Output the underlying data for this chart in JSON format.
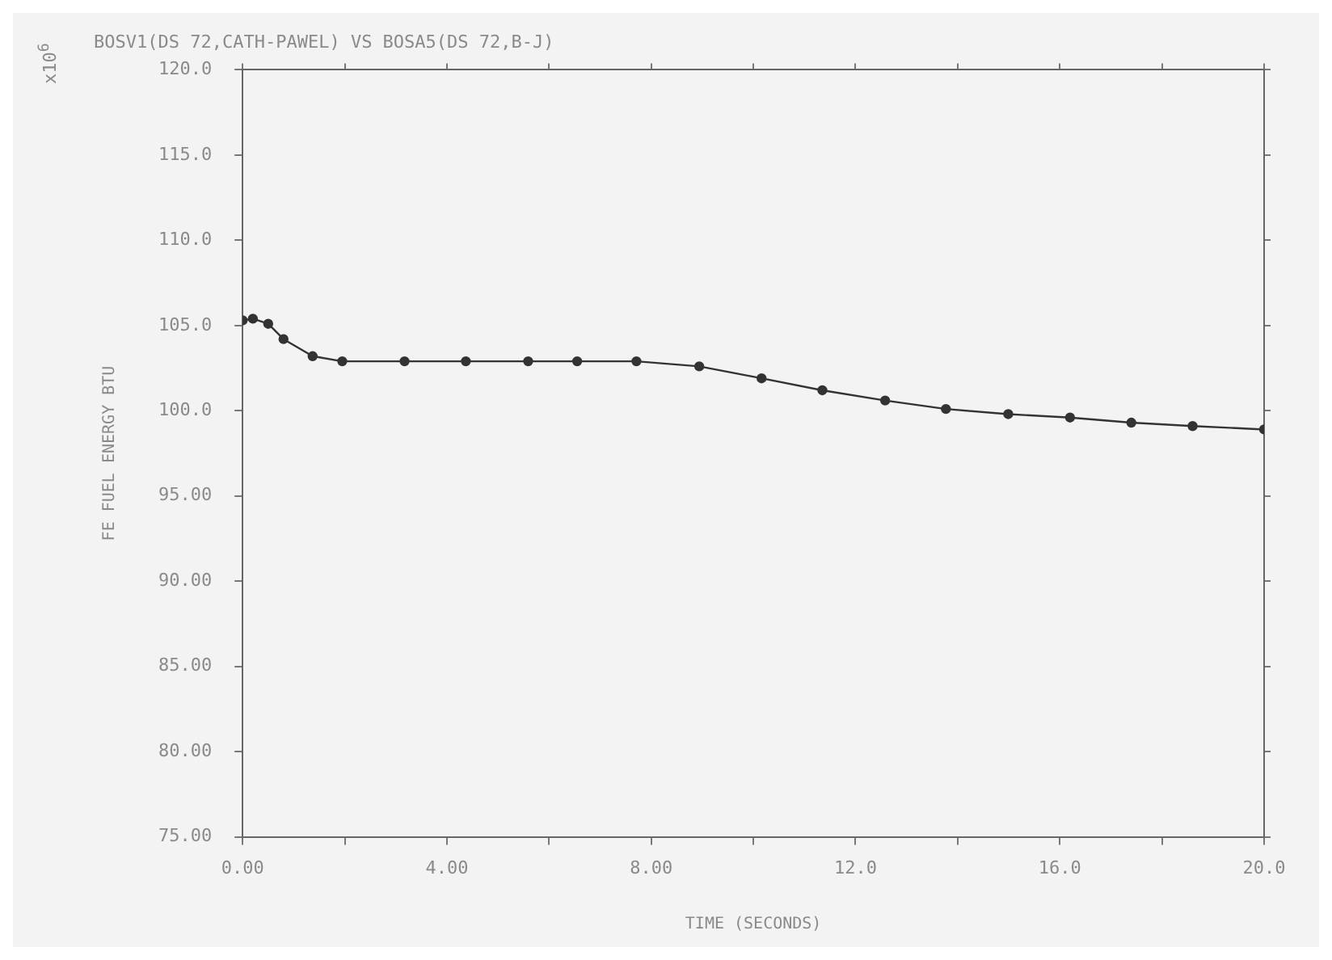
{
  "chart_data": {
    "type": "line",
    "title": "BOSV1(DS 72,CATH-PAWEL) VS BOSA5(DS 72,B-J)",
    "xlabel": "TIME (SECONDS)",
    "ylabel": "FE FUEL ENERGY BTU",
    "annotations": [
      "x10$^{6}$"
    ],
    "x": [
      0,
      0.2,
      0.5,
      0.8,
      1.37,
      1.95,
      3.17,
      4.37,
      5.59,
      6.55,
      7.71,
      8.94,
      10.16,
      11.35,
      12.58,
      13.77,
      14.99,
      16.2,
      17.4,
      18.6,
      20
    ],
    "series": [
      {
        "color": "#333333",
        "values": [
          105.3,
          105.4,
          105.1,
          104.2,
          103.2,
          102.9,
          102.9,
          102.9,
          102.9,
          102.9,
          102.9,
          102.6,
          101.9,
          101.2,
          100.6,
          100.1,
          99.8,
          99.6,
          99.3,
          99.1,
          98.9
        ]
      }
    ],
    "xlim": [
      0,
      20
    ],
    "xticks": [
      {
        "value": 0,
        "label": "0.00"
      },
      {
        "value": 2,
        "label": null
      },
      {
        "value": 4,
        "label": "4.00"
      },
      {
        "value": 6,
        "label": null
      },
      {
        "value": 8,
        "label": "8.00"
      },
      {
        "value": 10,
        "label": null
      },
      {
        "value": 12,
        "label": "12.0"
      },
      {
        "value": 14,
        "label": null
      },
      {
        "value": 16,
        "label": "16.0"
      },
      {
        "value": 18,
        "label": null
      },
      {
        "value": 20,
        "label": "20.0"
      }
    ],
    "ylim": [
      75,
      120
    ],
    "yticks": [
      {
        "value": 75,
        "label": "75.00"
      },
      {
        "value": 80,
        "label": "80.00"
      },
      {
        "value": 85,
        "label": "85.00"
      },
      {
        "value": 90,
        "label": "90.00"
      },
      {
        "value": 95,
        "label": "95.00"
      },
      {
        "value": 100,
        "label": "100.0"
      },
      {
        "value": 105,
        "label": "105.0"
      },
      {
        "value": 110,
        "label": "110.0"
      },
      {
        "value": 115,
        "label": "115.0"
      },
      {
        "value": 120,
        "label": "120.0"
      }
    ],
    "grid": false,
    "legend": false,
    "marker": "circle",
    "line_style": "solid"
  }
}
